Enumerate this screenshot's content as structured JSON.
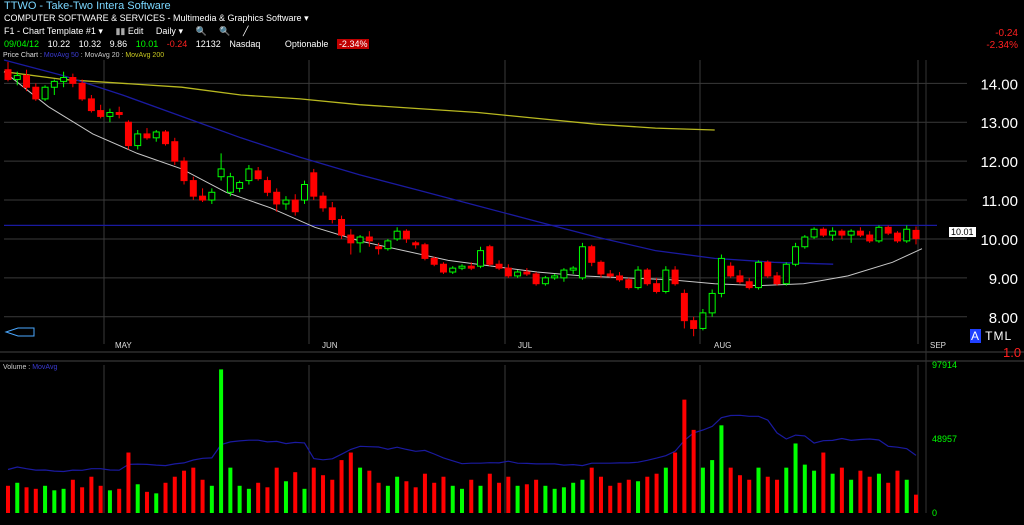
{
  "header": {
    "title": "TTWO  - Take-Two Intera Software",
    "industry": "COMPUTER SOFTWARE & SERVICES - Multimedia & Graphics Software",
    "template": "F1 - Chart Template #1",
    "edit": "Edit",
    "period": "Daily"
  },
  "quote": {
    "date": "09/04/12",
    "open": "10.22",
    "high": "10.32",
    "low": "9.86",
    "close": "10.01",
    "change": "-0.24",
    "volume": "12132",
    "exchange": "Nasdaq",
    "optionable": "Optionable",
    "pct_change": "-2.34%"
  },
  "right_panel": {
    "change": "-0.24",
    "pct_change": "-2.34%",
    "last_price_flag": "10.01",
    "altml": "TML",
    "altml_a": "A",
    "side_value": "1.0"
  },
  "legend": {
    "price_items": [
      "Price Chart",
      "MovAvg 50",
      "MovAvg 20",
      "MovAvg 200"
    ],
    "volume_items": [
      "Volume",
      "MovAvg"
    ]
  },
  "colors": {
    "up": "#00ff00",
    "down": "#ff0000",
    "ma50": "#1a1aa0",
    "ma20": "#c8c8c8",
    "ma200": "#b8b820",
    "grid": "#3a3a3a",
    "hline": "#1a1aa0"
  },
  "chart_data": {
    "type": "candlestick",
    "price_axis": {
      "ticks": [
        8.0,
        9.0,
        10.0,
        11.0,
        12.0,
        13.0,
        14.0
      ],
      "labels": [
        "8.00",
        "9.00",
        "10.00",
        "11.00",
        "12.00",
        "13.00",
        "14.00"
      ],
      "ylim": [
        7.3,
        14.6
      ]
    },
    "x_labels": [
      "MAY",
      "JUN",
      "JUL",
      "AUG",
      "SEP"
    ],
    "volume_axis": {
      "ticks": [
        0,
        48957,
        97914
      ],
      "labels": [
        "0",
        "48957",
        "97914"
      ]
    },
    "candles": [
      {
        "o": 14.35,
        "h": 14.55,
        "l": 14.05,
        "c": 14.1,
        "v": 18000
      },
      {
        "o": 14.1,
        "h": 14.3,
        "l": 13.95,
        "c": 14.2,
        "v": 20000
      },
      {
        "o": 14.2,
        "h": 14.35,
        "l": 13.8,
        "c": 13.9,
        "v": 17000
      },
      {
        "o": 13.9,
        "h": 14.0,
        "l": 13.55,
        "c": 13.6,
        "v": 16000
      },
      {
        "o": 13.6,
        "h": 13.95,
        "l": 13.55,
        "c": 13.9,
        "v": 18000
      },
      {
        "o": 13.9,
        "h": 14.1,
        "l": 13.7,
        "c": 14.05,
        "v": 15000
      },
      {
        "o": 14.05,
        "h": 14.3,
        "l": 13.9,
        "c": 14.15,
        "v": 16000
      },
      {
        "o": 14.15,
        "h": 14.25,
        "l": 13.9,
        "c": 14.0,
        "v": 22000
      },
      {
        "o": 14.0,
        "h": 14.1,
        "l": 13.55,
        "c": 13.6,
        "v": 17000
      },
      {
        "o": 13.6,
        "h": 13.7,
        "l": 13.25,
        "c": 13.3,
        "v": 24000
      },
      {
        "o": 13.3,
        "h": 13.45,
        "l": 13.1,
        "c": 13.15,
        "v": 18000
      },
      {
        "o": 13.15,
        "h": 13.35,
        "l": 13.0,
        "c": 13.25,
        "v": 15000
      },
      {
        "o": 13.25,
        "h": 13.4,
        "l": 13.1,
        "c": 13.2,
        "v": 16000
      },
      {
        "o": 13.0,
        "h": 13.05,
        "l": 12.3,
        "c": 12.4,
        "v": 40000
      },
      {
        "o": 12.4,
        "h": 12.8,
        "l": 12.3,
        "c": 12.7,
        "v": 19000
      },
      {
        "o": 12.7,
        "h": 12.85,
        "l": 12.55,
        "c": 12.6,
        "v": 14000
      },
      {
        "o": 12.6,
        "h": 12.8,
        "l": 12.5,
        "c": 12.75,
        "v": 13000
      },
      {
        "o": 12.75,
        "h": 12.8,
        "l": 12.4,
        "c": 12.45,
        "v": 20000
      },
      {
        "o": 12.5,
        "h": 12.6,
        "l": 11.9,
        "c": 12.0,
        "v": 24000
      },
      {
        "o": 12.0,
        "h": 12.1,
        "l": 11.4,
        "c": 11.5,
        "v": 28000
      },
      {
        "o": 11.5,
        "h": 11.6,
        "l": 11.0,
        "c": 11.1,
        "v": 30000
      },
      {
        "o": 11.1,
        "h": 11.3,
        "l": 10.95,
        "c": 11.0,
        "v": 22000
      },
      {
        "o": 11.0,
        "h": 11.3,
        "l": 10.9,
        "c": 11.2,
        "v": 18000
      },
      {
        "o": 11.6,
        "h": 12.2,
        "l": 11.5,
        "c": 11.8,
        "v": 95000
      },
      {
        "o": 11.2,
        "h": 11.7,
        "l": 11.1,
        "c": 11.6,
        "v": 30000
      },
      {
        "o": 11.3,
        "h": 11.5,
        "l": 11.2,
        "c": 11.45,
        "v": 18000
      },
      {
        "o": 11.5,
        "h": 11.9,
        "l": 11.4,
        "c": 11.8,
        "v": 16000
      },
      {
        "o": 11.75,
        "h": 11.85,
        "l": 11.5,
        "c": 11.55,
        "v": 20000
      },
      {
        "o": 11.5,
        "h": 11.6,
        "l": 11.1,
        "c": 11.2,
        "v": 17000
      },
      {
        "o": 11.2,
        "h": 11.3,
        "l": 10.7,
        "c": 10.9,
        "v": 30000
      },
      {
        "o": 10.9,
        "h": 11.1,
        "l": 10.75,
        "c": 11.0,
        "v": 21000
      },
      {
        "o": 11.0,
        "h": 11.15,
        "l": 10.6,
        "c": 10.7,
        "v": 27000
      },
      {
        "o": 11.0,
        "h": 11.5,
        "l": 10.9,
        "c": 11.4,
        "v": 16000
      },
      {
        "o": 11.7,
        "h": 11.8,
        "l": 11.0,
        "c": 11.1,
        "v": 30000
      },
      {
        "o": 11.1,
        "h": 11.2,
        "l": 10.7,
        "c": 10.8,
        "v": 25000
      },
      {
        "o": 10.8,
        "h": 10.95,
        "l": 10.4,
        "c": 10.5,
        "v": 22000
      },
      {
        "o": 10.5,
        "h": 10.6,
        "l": 10.0,
        "c": 10.1,
        "v": 35000
      },
      {
        "o": 10.1,
        "h": 10.25,
        "l": 9.6,
        "c": 9.9,
        "v": 40000
      },
      {
        "o": 9.9,
        "h": 10.1,
        "l": 9.65,
        "c": 10.05,
        "v": 30000
      },
      {
        "o": 10.05,
        "h": 10.2,
        "l": 9.8,
        "c": 9.95,
        "v": 28000
      },
      {
        "o": 9.8,
        "h": 9.9,
        "l": 9.6,
        "c": 9.75,
        "v": 20000
      },
      {
        "o": 9.75,
        "h": 10.0,
        "l": 9.7,
        "c": 9.95,
        "v": 18000
      },
      {
        "o": 10.0,
        "h": 10.3,
        "l": 9.95,
        "c": 10.2,
        "v": 24000
      },
      {
        "o": 10.2,
        "h": 10.25,
        "l": 9.9,
        "c": 10.0,
        "v": 21000
      },
      {
        "o": 9.9,
        "h": 9.95,
        "l": 9.75,
        "c": 9.85,
        "v": 17000
      },
      {
        "o": 9.85,
        "h": 9.9,
        "l": 9.45,
        "c": 9.5,
        "v": 26000
      },
      {
        "o": 9.5,
        "h": 9.55,
        "l": 9.3,
        "c": 9.35,
        "v": 20000
      },
      {
        "o": 9.35,
        "h": 9.4,
        "l": 9.1,
        "c": 9.15,
        "v": 24000
      },
      {
        "o": 9.15,
        "h": 9.3,
        "l": 9.1,
        "c": 9.25,
        "v": 18000
      },
      {
        "o": 9.25,
        "h": 9.35,
        "l": 9.2,
        "c": 9.3,
        "v": 16000
      },
      {
        "o": 9.3,
        "h": 9.4,
        "l": 9.2,
        "c": 9.25,
        "v": 22000
      },
      {
        "o": 9.3,
        "h": 9.8,
        "l": 9.25,
        "c": 9.7,
        "v": 18000
      },
      {
        "o": 9.8,
        "h": 9.85,
        "l": 9.3,
        "c": 9.35,
        "v": 26000
      },
      {
        "o": 9.35,
        "h": 9.45,
        "l": 9.2,
        "c": 9.25,
        "v": 20000
      },
      {
        "o": 9.25,
        "h": 9.35,
        "l": 9.0,
        "c": 9.05,
        "v": 24000
      },
      {
        "o": 9.05,
        "h": 9.2,
        "l": 9.0,
        "c": 9.15,
        "v": 18000
      },
      {
        "o": 9.15,
        "h": 9.25,
        "l": 9.05,
        "c": 9.1,
        "v": 19000
      },
      {
        "o": 9.1,
        "h": 9.15,
        "l": 8.8,
        "c": 8.85,
        "v": 22000
      },
      {
        "o": 8.85,
        "h": 9.05,
        "l": 8.8,
        "c": 9.0,
        "v": 18000
      },
      {
        "o": 9.0,
        "h": 9.1,
        "l": 8.95,
        "c": 9.05,
        "v": 16000
      },
      {
        "o": 9.0,
        "h": 9.25,
        "l": 8.9,
        "c": 9.2,
        "v": 17000
      },
      {
        "o": 9.2,
        "h": 9.3,
        "l": 9.1,
        "c": 9.25,
        "v": 20000
      },
      {
        "o": 9.0,
        "h": 9.9,
        "l": 8.95,
        "c": 9.8,
        "v": 22000
      },
      {
        "o": 9.8,
        "h": 9.85,
        "l": 9.3,
        "c": 9.4,
        "v": 30000
      },
      {
        "o": 9.4,
        "h": 9.45,
        "l": 9.0,
        "c": 9.1,
        "v": 24000
      },
      {
        "o": 9.1,
        "h": 9.2,
        "l": 9.0,
        "c": 9.05,
        "v": 18000
      },
      {
        "o": 9.05,
        "h": 9.15,
        "l": 8.9,
        "c": 8.95,
        "v": 20000
      },
      {
        "o": 8.95,
        "h": 9.0,
        "l": 8.7,
        "c": 8.75,
        "v": 22000
      },
      {
        "o": 8.75,
        "h": 9.3,
        "l": 8.7,
        "c": 9.2,
        "v": 21000
      },
      {
        "o": 9.2,
        "h": 9.25,
        "l": 8.8,
        "c": 8.85,
        "v": 24000
      },
      {
        "o": 8.85,
        "h": 9.0,
        "l": 8.6,
        "c": 8.65,
        "v": 26000
      },
      {
        "o": 8.65,
        "h": 9.3,
        "l": 8.6,
        "c": 9.2,
        "v": 30000
      },
      {
        "o": 9.2,
        "h": 9.3,
        "l": 8.8,
        "c": 8.85,
        "v": 40000
      },
      {
        "o": 8.6,
        "h": 8.7,
        "l": 7.7,
        "c": 7.9,
        "v": 75000
      },
      {
        "o": 7.9,
        "h": 8.0,
        "l": 7.5,
        "c": 7.7,
        "v": 55000
      },
      {
        "o": 7.7,
        "h": 8.2,
        "l": 7.65,
        "c": 8.1,
        "v": 30000
      },
      {
        "o": 8.1,
        "h": 8.7,
        "l": 8.0,
        "c": 8.6,
        "v": 35000
      },
      {
        "o": 8.6,
        "h": 9.6,
        "l": 8.5,
        "c": 9.5,
        "v": 58000
      },
      {
        "o": 9.3,
        "h": 9.4,
        "l": 9.0,
        "c": 9.05,
        "v": 30000
      },
      {
        "o": 9.05,
        "h": 9.2,
        "l": 8.85,
        "c": 8.9,
        "v": 25000
      },
      {
        "o": 8.9,
        "h": 9.0,
        "l": 8.7,
        "c": 8.75,
        "v": 22000
      },
      {
        "o": 8.75,
        "h": 9.45,
        "l": 8.7,
        "c": 9.4,
        "v": 30000
      },
      {
        "o": 9.4,
        "h": 9.45,
        "l": 9.0,
        "c": 9.05,
        "v": 24000
      },
      {
        "o": 9.05,
        "h": 9.15,
        "l": 8.8,
        "c": 8.85,
        "v": 22000
      },
      {
        "o": 8.85,
        "h": 9.4,
        "l": 8.8,
        "c": 9.35,
        "v": 30000
      },
      {
        "o": 9.35,
        "h": 9.9,
        "l": 9.3,
        "c": 9.8,
        "v": 46000
      },
      {
        "o": 9.8,
        "h": 10.1,
        "l": 9.75,
        "c": 10.05,
        "v": 32000
      },
      {
        "o": 10.05,
        "h": 10.3,
        "l": 10.0,
        "c": 10.25,
        "v": 28000
      },
      {
        "o": 10.25,
        "h": 10.3,
        "l": 10.05,
        "c": 10.1,
        "v": 40000
      },
      {
        "o": 10.1,
        "h": 10.3,
        "l": 9.95,
        "c": 10.2,
        "v": 26000
      },
      {
        "o": 10.2,
        "h": 10.25,
        "l": 10.0,
        "c": 10.1,
        "v": 30000
      },
      {
        "o": 10.1,
        "h": 10.25,
        "l": 9.9,
        "c": 10.2,
        "v": 22000
      },
      {
        "o": 10.2,
        "h": 10.3,
        "l": 10.05,
        "c": 10.1,
        "v": 28000
      },
      {
        "o": 10.1,
        "h": 10.2,
        "l": 9.9,
        "c": 9.95,
        "v": 24000
      },
      {
        "o": 9.95,
        "h": 10.35,
        "l": 9.9,
        "c": 10.3,
        "v": 26000
      },
      {
        "o": 10.3,
        "h": 10.35,
        "l": 10.1,
        "c": 10.15,
        "v": 20000
      },
      {
        "o": 10.15,
        "h": 10.2,
        "l": 9.9,
        "c": 9.95,
        "v": 28000
      },
      {
        "o": 9.95,
        "h": 10.35,
        "l": 9.9,
        "c": 10.25,
        "v": 22000
      },
      {
        "o": 10.22,
        "h": 10.32,
        "l": 9.86,
        "c": 10.01,
        "v": 12132
      }
    ],
    "hline": 10.35,
    "ma200": [
      [
        0,
        14.3
      ],
      [
        40,
        14.1
      ],
      [
        80,
        14.0
      ],
      [
        120,
        13.9
      ],
      [
        160,
        13.7
      ],
      [
        200,
        13.6
      ],
      [
        240,
        13.45
      ],
      [
        280,
        13.35
      ],
      [
        320,
        13.25
      ],
      [
        360,
        13.1
      ],
      [
        400,
        12.95
      ],
      [
        440,
        12.85
      ],
      [
        480,
        12.8
      ]
    ],
    "ma50": [
      [
        0,
        14.6
      ],
      [
        40,
        14.2
      ],
      [
        80,
        13.7
      ],
      [
        120,
        13.15
      ],
      [
        160,
        12.6
      ],
      [
        200,
        12.1
      ],
      [
        240,
        11.65
      ],
      [
        280,
        11.25
      ],
      [
        320,
        10.85
      ],
      [
        360,
        10.45
      ],
      [
        400,
        10.05
      ],
      [
        440,
        9.7
      ],
      [
        480,
        9.5
      ],
      [
        520,
        9.4
      ],
      [
        560,
        9.35
      ]
    ],
    "ma20": [
      [
        0,
        14.3
      ],
      [
        30,
        13.4
      ],
      [
        60,
        12.7
      ],
      [
        90,
        12.2
      ],
      [
        120,
        11.8
      ],
      [
        150,
        11.2
      ],
      [
        180,
        10.8
      ],
      [
        210,
        10.3
      ],
      [
        240,
        9.95
      ],
      [
        270,
        9.7
      ],
      [
        300,
        9.45
      ],
      [
        330,
        9.3
      ],
      [
        360,
        9.15
      ],
      [
        390,
        9.05
      ],
      [
        420,
        9.0
      ],
      [
        450,
        8.95
      ],
      [
        480,
        8.85
      ],
      [
        510,
        8.8
      ],
      [
        540,
        8.85
      ],
      [
        570,
        9.05
      ],
      [
        600,
        9.4
      ],
      [
        620,
        9.75
      ]
    ]
  }
}
